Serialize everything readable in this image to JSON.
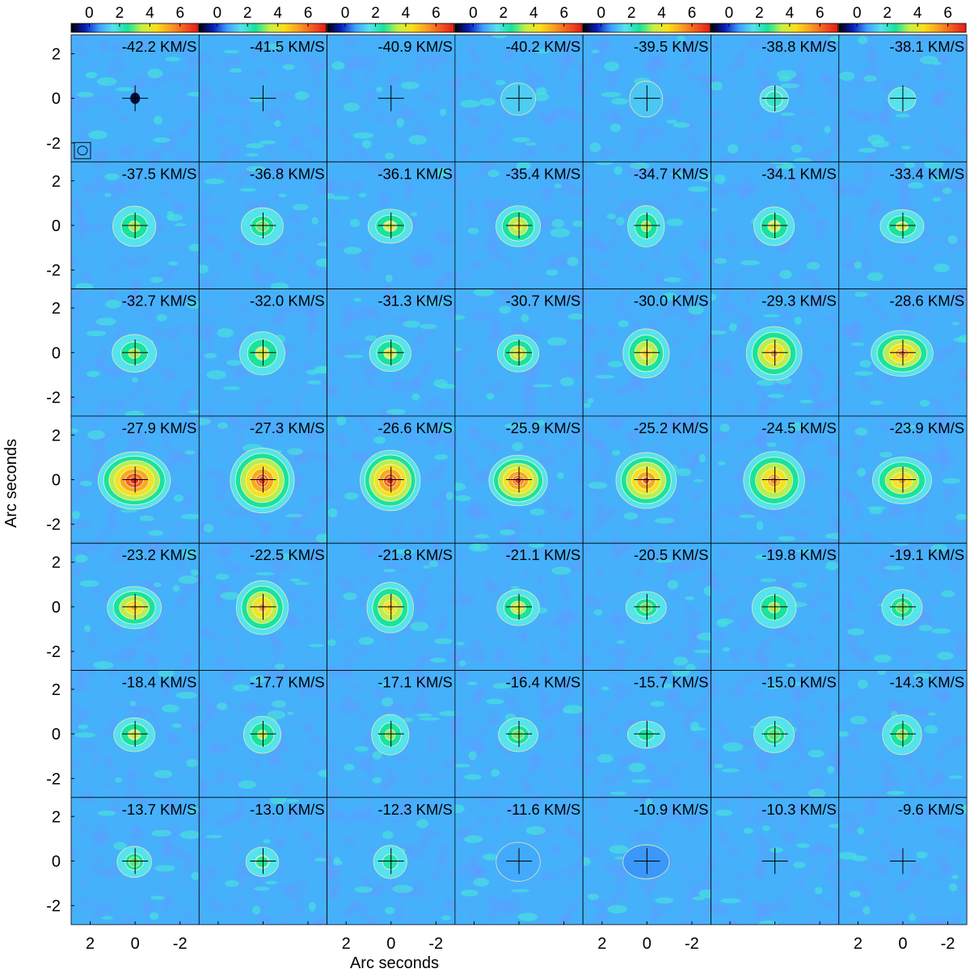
{
  "chart_data": {
    "type": "heatmap",
    "title": "",
    "xlabel": "Arc seconds",
    "ylabel": "Arc seconds",
    "grid": {
      "rows": 7,
      "cols": 7
    },
    "colorbar": {
      "tick_labels": [
        "0",
        "2",
        "4",
        "6"
      ],
      "tick_values": [
        0,
        2,
        4,
        6
      ],
      "range": [
        -1.2,
        7.2
      ],
      "colors": [
        "#000000",
        "#0a1fb8",
        "#3fa0ff",
        "#55e3ee",
        "#17e39a",
        "#c6ef4a",
        "#f8e11a",
        "#f9a020",
        "#f25a1e",
        "#e11b1b"
      ]
    },
    "x_ticks": {
      "labels": [
        "2",
        "0",
        "-2"
      ],
      "values": [
        2,
        0,
        -2
      ],
      "shown_in_columns": [
        0,
        2,
        4,
        6
      ]
    },
    "y_ticks": {
      "labels": [
        "2",
        "0",
        "-2"
      ],
      "values": [
        2,
        0,
        -2
      ]
    },
    "axis_range": [
      2.85,
      -2.85
    ],
    "panels": [
      {
        "label": "-42.2 KM/S",
        "peak": 0.3,
        "absorb": 2.5
      },
      {
        "label": "-41.5 KM/S",
        "peak": 0.0,
        "absorb": 0.0
      },
      {
        "label": "-40.9 KM/S",
        "peak": 0.0,
        "absorb": 0.0
      },
      {
        "label": "-40.2 KM/S",
        "peak": 1.3,
        "absorb": 0.0
      },
      {
        "label": "-39.5 KM/S",
        "peak": 1.2,
        "absorb": 0.0
      },
      {
        "label": "-38.8 KM/S",
        "peak": 2.0,
        "absorb": 0.0
      },
      {
        "label": "-38.1 KM/S",
        "peak": 1.6,
        "absorb": 0.0
      },
      {
        "label": "-37.5 KM/S",
        "peak": 3.3,
        "absorb": 0.0
      },
      {
        "label": "-36.8 KM/S",
        "peak": 3.0,
        "absorb": 0.0
      },
      {
        "label": "-36.1 KM/S",
        "peak": 3.6,
        "absorb": 0.0
      },
      {
        "label": "-35.4 KM/S",
        "peak": 4.2,
        "absorb": 0.0
      },
      {
        "label": "-34.7 KM/S",
        "peak": 3.3,
        "absorb": 0.0
      },
      {
        "label": "-34.1 KM/S",
        "peak": 3.6,
        "absorb": 0.0
      },
      {
        "label": "-33.4 KM/S",
        "peak": 3.5,
        "absorb": 0.0
      },
      {
        "label": "-32.7 KM/S",
        "peak": 3.3,
        "absorb": 0.0
      },
      {
        "label": "-32.0 KM/S",
        "peak": 3.6,
        "absorb": 0.0
      },
      {
        "label": "-31.3 KM/S",
        "peak": 3.6,
        "absorb": 0.0
      },
      {
        "label": "-30.7 KM/S",
        "peak": 4.0,
        "absorb": 0.0
      },
      {
        "label": "-30.0 KM/S",
        "peak": 4.6,
        "absorb": 0.0
      },
      {
        "label": "-29.3 KM/S",
        "peak": 5.3,
        "absorb": 0.0
      },
      {
        "label": "-28.6 KM/S",
        "peak": 5.6,
        "absorb": 0.0
      },
      {
        "label": "-27.9 KM/S",
        "peak": 7.0,
        "absorb": 0.0
      },
      {
        "label": "-27.3 KM/S",
        "peak": 6.6,
        "absorb": 0.0
      },
      {
        "label": "-26.6 KM/S",
        "peak": 6.8,
        "absorb": 0.0
      },
      {
        "label": "-25.9 KM/S",
        "peak": 6.6,
        "absorb": 0.0
      },
      {
        "label": "-25.2 KM/S",
        "peak": 6.2,
        "absorb": 0.0
      },
      {
        "label": "-24.5 KM/S",
        "peak": 5.6,
        "absorb": 0.0
      },
      {
        "label": "-23.9 KM/S",
        "peak": 5.2,
        "absorb": 0.0
      },
      {
        "label": "-23.2 KM/S",
        "peak": 5.0,
        "absorb": 0.0
      },
      {
        "label": "-22.5 KM/S",
        "peak": 5.4,
        "absorb": 0.0
      },
      {
        "label": "-21.8 KM/S",
        "peak": 4.8,
        "absorb": 0.0
      },
      {
        "label": "-21.1 KM/S",
        "peak": 3.8,
        "absorb": 0.0
      },
      {
        "label": "-20.5 KM/S",
        "peak": 3.0,
        "absorb": 0.0
      },
      {
        "label": "-19.8 KM/S",
        "peak": 3.3,
        "absorb": 0.0
      },
      {
        "label": "-19.1 KM/S",
        "peak": 3.0,
        "absorb": 0.0
      },
      {
        "label": "-18.4 KM/S",
        "peak": 3.6,
        "absorb": 0.0
      },
      {
        "label": "-17.7 KM/S",
        "peak": 3.4,
        "absorb": 0.0
      },
      {
        "label": "-17.1 KM/S",
        "peak": 3.2,
        "absorb": 0.0
      },
      {
        "label": "-16.4 KM/S",
        "peak": 3.0,
        "absorb": 0.0
      },
      {
        "label": "-15.7 KM/S",
        "peak": 2.4,
        "absorb": 0.0
      },
      {
        "label": "-15.0 KM/S",
        "peak": 2.9,
        "absorb": 0.0
      },
      {
        "label": "-14.3 KM/S",
        "peak": 3.2,
        "absorb": 0.0
      },
      {
        "label": "-13.7 KM/S",
        "peak": 2.9,
        "absorb": 0.0
      },
      {
        "label": "-13.0 KM/S",
        "peak": 2.6,
        "absorb": 0.0
      },
      {
        "label": "-12.3 KM/S",
        "peak": 2.3,
        "absorb": 0.0
      },
      {
        "label": "-11.6 KM/S",
        "peak": 0.8,
        "absorb": 0.0
      },
      {
        "label": "-10.9 KM/S",
        "peak": 0.6,
        "absorb": 0.0
      },
      {
        "label": "-10.3 KM/S",
        "peak": 0.2,
        "absorb": 0.0
      },
      {
        "label": "-9.6 KM/S",
        "peak": 0.3,
        "absorb": 0.0
      }
    ]
  }
}
